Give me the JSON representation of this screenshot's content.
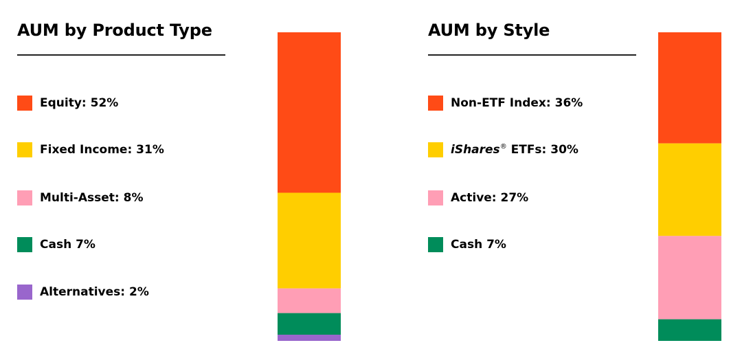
{
  "chart_data": [
    {
      "type": "bar",
      "stacked": true,
      "title": "AUM by Product Type",
      "unit": "%",
      "segments": [
        {
          "label": "Equity: 52%",
          "name": "Equity",
          "value": 52,
          "color": "#FF4B16"
        },
        {
          "label": "Fixed Income: 31%",
          "name": "Fixed Income",
          "value": 31,
          "color": "#FFCE00"
        },
        {
          "label": "Multi-Asset: 8%",
          "name": "Multi-Asset",
          "value": 8,
          "color": "#FF9EB5"
        },
        {
          "label": "Cash 7%",
          "name": "Cash",
          "value": 7,
          "color": "#008C5A"
        },
        {
          "label": "Alternatives: 2%",
          "name": "Alternatives",
          "value": 2,
          "color": "#9966CC"
        }
      ]
    },
    {
      "type": "bar",
      "stacked": true,
      "title": "AUM by Style",
      "unit": "%",
      "segments": [
        {
          "label": "Non-ETF Index: 36%",
          "name": "Non-ETF Index",
          "value": 36,
          "color": "#FF4B16"
        },
        {
          "label": "iShares® ETFs: 30%",
          "name": "iShares ETFs",
          "label_italic": "iShares",
          "label_sup": "®",
          "label_rest": " ETFs: 30%",
          "value": 30,
          "color": "#FFCE00"
        },
        {
          "label": "Active: 27%",
          "name": "Active",
          "value": 27,
          "color": "#FF9EB5"
        },
        {
          "label": "Cash 7%",
          "name": "Cash",
          "value": 7,
          "color": "#008C5A"
        }
      ]
    }
  ]
}
